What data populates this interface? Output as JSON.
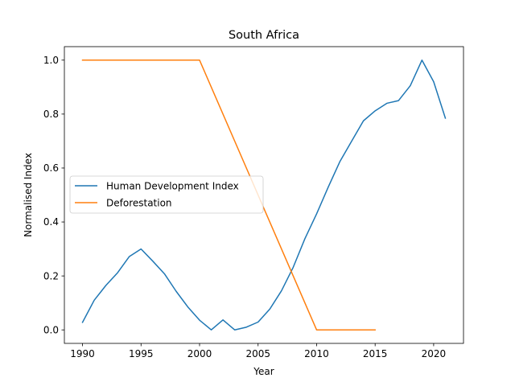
{
  "chart_data": {
    "type": "line",
    "title": "South Africa",
    "xlabel": "Year",
    "ylabel": "Normalised Index",
    "xlim": [
      1988.45,
      2022.55
    ],
    "ylim": [
      -0.05,
      1.05
    ],
    "xticks": [
      1990,
      1995,
      2000,
      2005,
      2010,
      2015,
      2020
    ],
    "yticks": [
      0.0,
      0.2,
      0.4,
      0.6,
      0.8,
      1.0
    ],
    "xtick_labels": [
      "1990",
      "1995",
      "2000",
      "2005",
      "2010",
      "2015",
      "2020"
    ],
    "ytick_labels": [
      "0.0",
      "0.2",
      "0.4",
      "0.6",
      "0.8",
      "1.0"
    ],
    "grid": false,
    "legend_position": "center-left",
    "series": [
      {
        "name": "Human Development Index",
        "color": "#1f77b4",
        "x": [
          1990,
          1991,
          1992,
          1993,
          1994,
          1995,
          1996,
          1997,
          1998,
          1999,
          2000,
          2001,
          2002,
          2003,
          2004,
          2005,
          2006,
          2007,
          2008,
          2009,
          2010,
          2011,
          2012,
          2013,
          2014,
          2015,
          2016,
          2017,
          2018,
          2019,
          2020,
          2021
        ],
        "values": [
          0.028,
          0.11,
          0.165,
          0.212,
          0.272,
          0.3,
          0.255,
          0.208,
          0.143,
          0.085,
          0.036,
          0.0,
          0.037,
          0.0,
          0.01,
          0.029,
          0.077,
          0.145,
          0.232,
          0.338,
          0.43,
          0.53,
          0.625,
          0.7,
          0.775,
          0.812,
          0.84,
          0.85,
          0.905,
          1.0,
          0.92,
          0.785
        ]
      },
      {
        "name": "Deforestation",
        "color": "#ff7f0e",
        "x": [
          1990,
          1995,
          2000,
          2005,
          2010,
          2015
        ],
        "values": [
          1.0,
          1.0,
          1.0,
          0.5,
          0.0,
          0.0
        ]
      }
    ]
  }
}
